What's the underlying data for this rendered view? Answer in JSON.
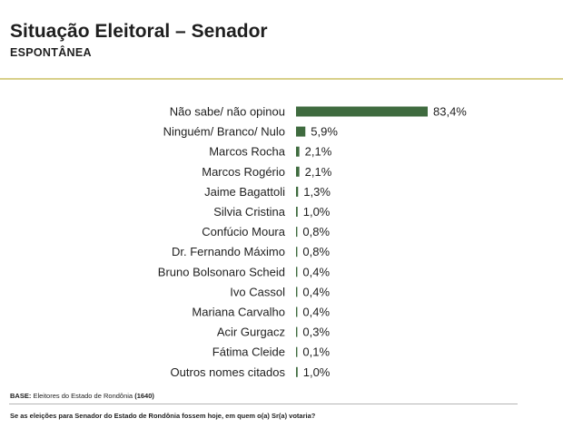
{
  "header": {
    "title": "Situação Eleitoral – Senador",
    "subtitle": "ESPONTÂNEA"
  },
  "footer": {
    "base_label": "BASE:",
    "base_text": "Eleitores do Estado de Rondônia",
    "base_count": "(1640)",
    "question": "Se as eleições para Senador do Estado de Rondônia fossem hoje, em quem o(a) Sr(a) votaria?"
  },
  "colors": {
    "bar": "#3f6b3f",
    "bar_dark": "#2c4f2c",
    "header_rule": "#d8d08a"
  },
  "chart_data": {
    "type": "bar",
    "orientation": "horizontal",
    "categories": [
      "Não sabe/ não opinou",
      "Ninguém/ Branco/ Nulo",
      "Marcos Rocha",
      "Marcos Rogério",
      "Jaime Bagattoli",
      "Silvia Cristina",
      "Confúcio Moura",
      "Dr. Fernando Máximo",
      "Bruno Bolsonaro Scheid",
      "Ivo Cassol",
      "Mariana Carvalho",
      "Acir Gurgacz",
      "Fátima Cleide",
      "Outros nomes citados"
    ],
    "values": [
      83.4,
      5.9,
      2.1,
      2.1,
      1.3,
      1.0,
      0.8,
      0.8,
      0.4,
      0.4,
      0.4,
      0.3,
      0.1,
      1.0
    ],
    "value_labels": [
      "83,4%",
      "5,9%",
      "2,1%",
      "2,1%",
      "1,3%",
      "1,0%",
      "0,8%",
      "0,8%",
      "0,4%",
      "0,4%",
      "0,4%",
      "0,3%",
      "0,1%",
      "1,0%"
    ],
    "title": "Situação Eleitoral – Senador",
    "xlabel": "",
    "ylabel": "",
    "xlim": [
      0,
      100
    ],
    "grid": false,
    "legend": "none"
  }
}
